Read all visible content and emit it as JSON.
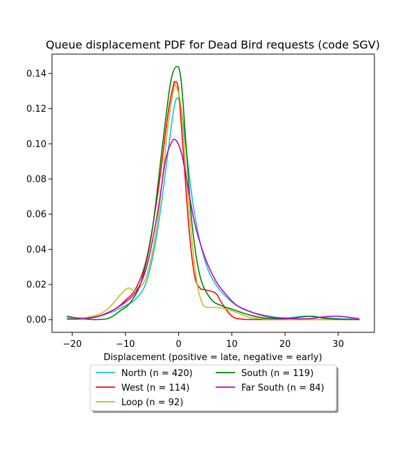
{
  "chart_data": {
    "type": "line",
    "title": "Queue displacement PDF for Dead Bird  requests (code SGV)",
    "xlabel": "Displacement (positive = late, negative = early)",
    "ylabel": "",
    "xlim": [
      -23.8,
      36.8
    ],
    "ylim": [
      -0.0072,
      0.151
    ],
    "xticks": [
      -20,
      -10,
      0,
      10,
      20,
      30
    ],
    "xtick_labels": [
      "−20",
      "−10",
      "0",
      "10",
      "20",
      "30"
    ],
    "yticks": [
      0.0,
      0.02,
      0.04,
      0.06,
      0.08,
      0.1,
      0.12,
      0.14
    ],
    "ytick_labels": [
      "0.00",
      "0.02",
      "0.04",
      "0.06",
      "0.08",
      "0.10",
      "0.12",
      "0.14"
    ],
    "grid": false,
    "legend_position": "bottom-center",
    "legend_columns": 2,
    "series": [
      {
        "name": "North (n = 420)",
        "color": "#17becf",
        "x": [
          -21,
          -18,
          -15,
          -12,
          -10,
          -8,
          -6,
          -4,
          -2,
          -1,
          -0.3,
          0.5,
          1.5,
          3,
          5,
          7,
          10,
          13,
          17,
          20,
          24,
          28,
          31,
          34
        ],
        "y": [
          0.001,
          0.001,
          0.002,
          0.005,
          0.008,
          0.012,
          0.022,
          0.05,
          0.095,
          0.118,
          0.126,
          0.12,
          0.095,
          0.06,
          0.033,
          0.02,
          0.01,
          0.005,
          0.002,
          0.001,
          0.002,
          0.001,
          0.0005,
          0.0003
        ]
      },
      {
        "name": "West (n = 114)",
        "color": "#ff0000",
        "x": [
          -21,
          -18,
          -15,
          -12,
          -10,
          -8,
          -6,
          -4,
          -2,
          -1,
          -0.7,
          0,
          1,
          2,
          3,
          4,
          5,
          7,
          8,
          10,
          12,
          14,
          20,
          34
        ],
        "y": [
          0.0005,
          0.0005,
          0.002,
          0.006,
          0.011,
          0.018,
          0.035,
          0.07,
          0.117,
          0.133,
          0.135,
          0.13,
          0.09,
          0.05,
          0.025,
          0.018,
          0.017,
          0.015,
          0.01,
          0.002,
          0.0003,
          0.0001,
          0.0001,
          0.0001
        ]
      },
      {
        "name": "Loop (n = 92)",
        "color": "#bcbd22",
        "x": [
          -21,
          -18,
          -15,
          -13,
          -11,
          -9.5,
          -8,
          -6,
          -4,
          -2,
          -1,
          -0.5,
          0.5,
          1.5,
          2.5,
          3.5,
          4.5,
          5.5,
          7,
          9,
          11,
          14,
          20,
          34
        ],
        "y": [
          0.0005,
          0.001,
          0.003,
          0.007,
          0.014,
          0.018,
          0.017,
          0.025,
          0.055,
          0.11,
          0.13,
          0.133,
          0.12,
          0.08,
          0.045,
          0.02,
          0.009,
          0.007,
          0.007,
          0.006,
          0.004,
          0.001,
          0.0001,
          0.0001
        ]
      },
      {
        "name": "South (n = 119)",
        "color": "#008000",
        "x": [
          -21,
          -18,
          -15,
          -13,
          -11,
          -9,
          -7,
          -5,
          -3,
          -1.5,
          -0.3,
          0.5,
          1.5,
          2.5,
          4,
          6,
          8,
          10,
          13,
          16,
          20,
          23,
          25,
          27,
          30,
          34
        ],
        "y": [
          0.002,
          0.0005,
          0.0001,
          0.001,
          0.005,
          0.01,
          0.022,
          0.05,
          0.1,
          0.135,
          0.144,
          0.135,
          0.095,
          0.055,
          0.025,
          0.012,
          0.008,
          0.006,
          0.003,
          0.001,
          0.0005,
          0.0015,
          0.002,
          0.001,
          0.0002,
          0.0001
        ]
      },
      {
        "name": "Far South (n = 84)",
        "color": "#bf00bf",
        "x": [
          -21,
          -18,
          -15,
          -12,
          -10,
          -8,
          -6,
          -4,
          -2.5,
          -1.3,
          -0.5,
          0.5,
          1.5,
          3,
          5,
          7,
          9,
          11,
          14,
          17,
          20,
          24,
          27,
          30,
          34
        ],
        "y": [
          0.0003,
          0.0005,
          0.002,
          0.006,
          0.01,
          0.016,
          0.03,
          0.06,
          0.09,
          0.101,
          0.102,
          0.095,
          0.08,
          0.055,
          0.035,
          0.022,
          0.014,
          0.008,
          0.004,
          0.0015,
          0.0008,
          0.0005,
          0.0015,
          0.002,
          0.0005
        ]
      }
    ]
  }
}
